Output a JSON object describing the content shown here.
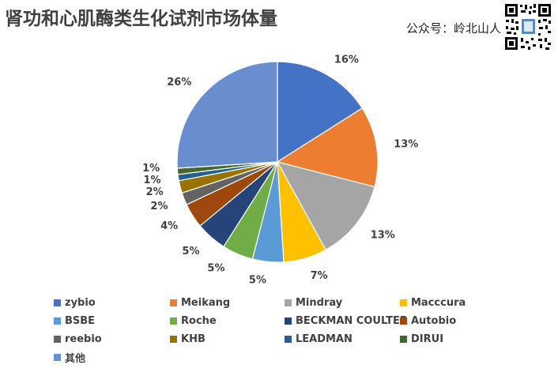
{
  "title": "肾功和心肌酶类生化试剂市场体量",
  "watermark": "公众号：岭北山人",
  "chart_data": {
    "type": "pie",
    "title": "肾功和心肌酶类生化试剂市场体量",
    "legend_position": "bottom",
    "start_angle": "12 o'clock",
    "direction": "clockwise",
    "slices": [
      {
        "name": "zybio",
        "value": 16,
        "label": "16%",
        "color": "#4472C4"
      },
      {
        "name": "Meikang",
        "value": 13,
        "label": "13%",
        "color": "#ED7D31"
      },
      {
        "name": "Mindray",
        "value": 13,
        "label": "13%",
        "color": "#A5A5A5"
      },
      {
        "name": "Macccura",
        "value": 7,
        "label": "7%",
        "color": "#FFC000"
      },
      {
        "name": "BSBE",
        "value": 5,
        "label": "5%",
        "color": "#5B9BD5"
      },
      {
        "name": "Roche",
        "value": 5,
        "label": "5%",
        "color": "#70AD47"
      },
      {
        "name": "BECKMAN COULTER",
        "value": 5,
        "label": "5%",
        "color": "#264478"
      },
      {
        "name": "Autobio",
        "value": 4,
        "label": "4%",
        "color": "#9E480E"
      },
      {
        "name": "reebio",
        "value": 2,
        "label": "2%",
        "color": "#636363"
      },
      {
        "name": "KHB",
        "value": 2,
        "label": "2%",
        "color": "#997300"
      },
      {
        "name": "LEADMAN",
        "value": 1,
        "label": "1%",
        "color": "#255E91"
      },
      {
        "name": "DIRUI",
        "value": 1,
        "label": "1%",
        "color": "#43682B"
      },
      {
        "name": "其他",
        "value": 26,
        "label": "26%",
        "color": "#698ED0"
      }
    ]
  }
}
